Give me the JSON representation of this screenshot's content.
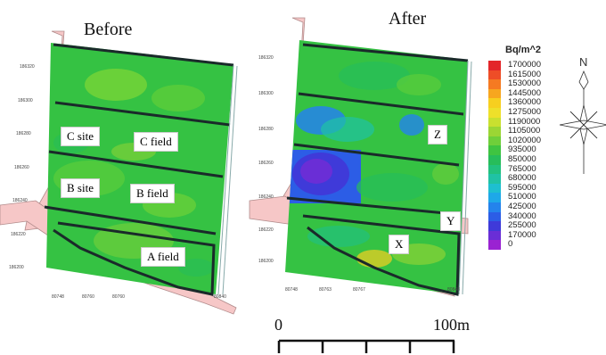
{
  "panels": {
    "before_title": "Before",
    "after_title": "After"
  },
  "before_axis": {
    "y_ticks": [
      "186320",
      "186300",
      "186280",
      "186260",
      "186240",
      "186220",
      "186200"
    ],
    "x_ticks": [
      "80748",
      "80760",
      "80760",
      "80840"
    ]
  },
  "after_axis": {
    "y_ticks": [
      "186320",
      "186300",
      "186280",
      "186260",
      "186240",
      "186220",
      "186200"
    ],
    "x_ticks": [
      "80748",
      "80763",
      "80767",
      "80848"
    ]
  },
  "field_labels": {
    "c_site": "C site",
    "c_field": "C field",
    "b_site": "B site",
    "b_field": "B field",
    "a_field": "A field",
    "z": "Z",
    "y": "Y",
    "x": "X"
  },
  "legend": {
    "title": "Bq/m^2",
    "entries": [
      {
        "label": "1700000",
        "color": "#e3262a"
      },
      {
        "label": "1615000",
        "color": "#ee4d27"
      },
      {
        "label": "1530000",
        "color": "#f57a22"
      },
      {
        "label": "1445000",
        "color": "#f7a61f"
      },
      {
        "label": "1360000",
        "color": "#f7cf1f"
      },
      {
        "label": "1275000",
        "color": "#eee02a"
      },
      {
        "label": "1190000",
        "color": "#c9e02f"
      },
      {
        "label": "1105000",
        "color": "#9bd634"
      },
      {
        "label": "1020000",
        "color": "#6fcf3a"
      },
      {
        "label": "935000",
        "color": "#3fc441"
      },
      {
        "label": "850000",
        "color": "#27bd5a"
      },
      {
        "label": "765000",
        "color": "#22c17e"
      },
      {
        "label": "680000",
        "color": "#20c2a4"
      },
      {
        "label": "595000",
        "color": "#1ebfd0"
      },
      {
        "label": "510000",
        "color": "#1ea8e8"
      },
      {
        "label": "425000",
        "color": "#2483ec"
      },
      {
        "label": "340000",
        "color": "#2c5de6"
      },
      {
        "label": "255000",
        "color": "#3f3ad9"
      },
      {
        "label": "170000",
        "color": "#6a2ed6"
      },
      {
        "label": "0",
        "color": "#9a22d2"
      }
    ]
  },
  "scale_bar": {
    "start_label": "0",
    "end_label": "100m"
  },
  "compass": {
    "north_label": "N"
  }
}
